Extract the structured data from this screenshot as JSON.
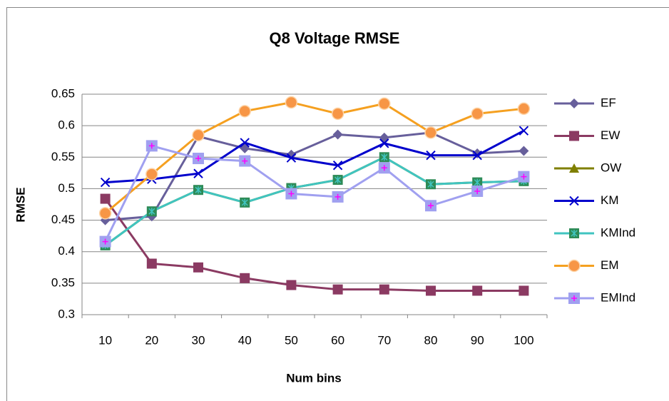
{
  "chart_data": {
    "type": "line",
    "title": "Q8 Voltage RMSE",
    "x_label": "Num bins",
    "y_label": "RMSE",
    "categories": [
      "10",
      "20",
      "30",
      "40",
      "50",
      "60",
      "70",
      "80",
      "90",
      "100"
    ],
    "ylim": [
      0.3,
      0.65
    ],
    "yticks": [
      0.3,
      0.35,
      0.4,
      0.45,
      0.5,
      0.55,
      0.6,
      0.65
    ],
    "grid": true,
    "legend": "right",
    "series": [
      {
        "name": "EF",
        "color": "#675f9b",
        "marker": "diamond",
        "marker_color": "#675f9b",
        "values": [
          0.45,
          0.456,
          0.583,
          0.564,
          0.554,
          0.586,
          0.581,
          0.589,
          0.556,
          0.56
        ]
      },
      {
        "name": "EW",
        "color": "#8b3a62",
        "marker": "square",
        "marker_color": "#8b3a62",
        "values": [
          0.484,
          0.381,
          0.375,
          0.358,
          0.347,
          0.34,
          0.34,
          0.338,
          0.338,
          0.338
        ]
      },
      {
        "name": "OW",
        "color": "#7f7f00",
        "marker": "triangle",
        "marker_color": "#7f7f00",
        "values": [
          0.41,
          0.464,
          0.498,
          0.478,
          0.501,
          0.514,
          0.55,
          0.507,
          0.51,
          0.512
        ]
      },
      {
        "name": "KM",
        "color": "#0000cc",
        "marker": "x",
        "marker_color": "#0000cc",
        "values": [
          0.51,
          0.515,
          0.524,
          0.573,
          0.549,
          0.537,
          0.572,
          0.553,
          0.553,
          0.592
        ]
      },
      {
        "name": "KMInd",
        "color": "#40c4c0",
        "marker": "star-square",
        "marker_color": "#2e8b57",
        "values": [
          0.41,
          0.464,
          0.498,
          0.478,
          0.501,
          0.514,
          0.55,
          0.507,
          0.51,
          0.512
        ]
      },
      {
        "name": "EM",
        "color": "#f5a020",
        "marker": "circle",
        "marker_color": "#f79646",
        "values": [
          0.461,
          0.523,
          0.585,
          0.623,
          0.637,
          0.619,
          0.635,
          0.589,
          0.619,
          0.627
        ]
      },
      {
        "name": "EMInd",
        "color": "#a0a0f0",
        "marker": "plus-square",
        "marker_color": "#a0a0f0",
        "values": [
          0.416,
          0.568,
          0.548,
          0.544,
          0.492,
          0.487,
          0.533,
          0.473,
          0.496,
          0.519
        ]
      }
    ]
  }
}
